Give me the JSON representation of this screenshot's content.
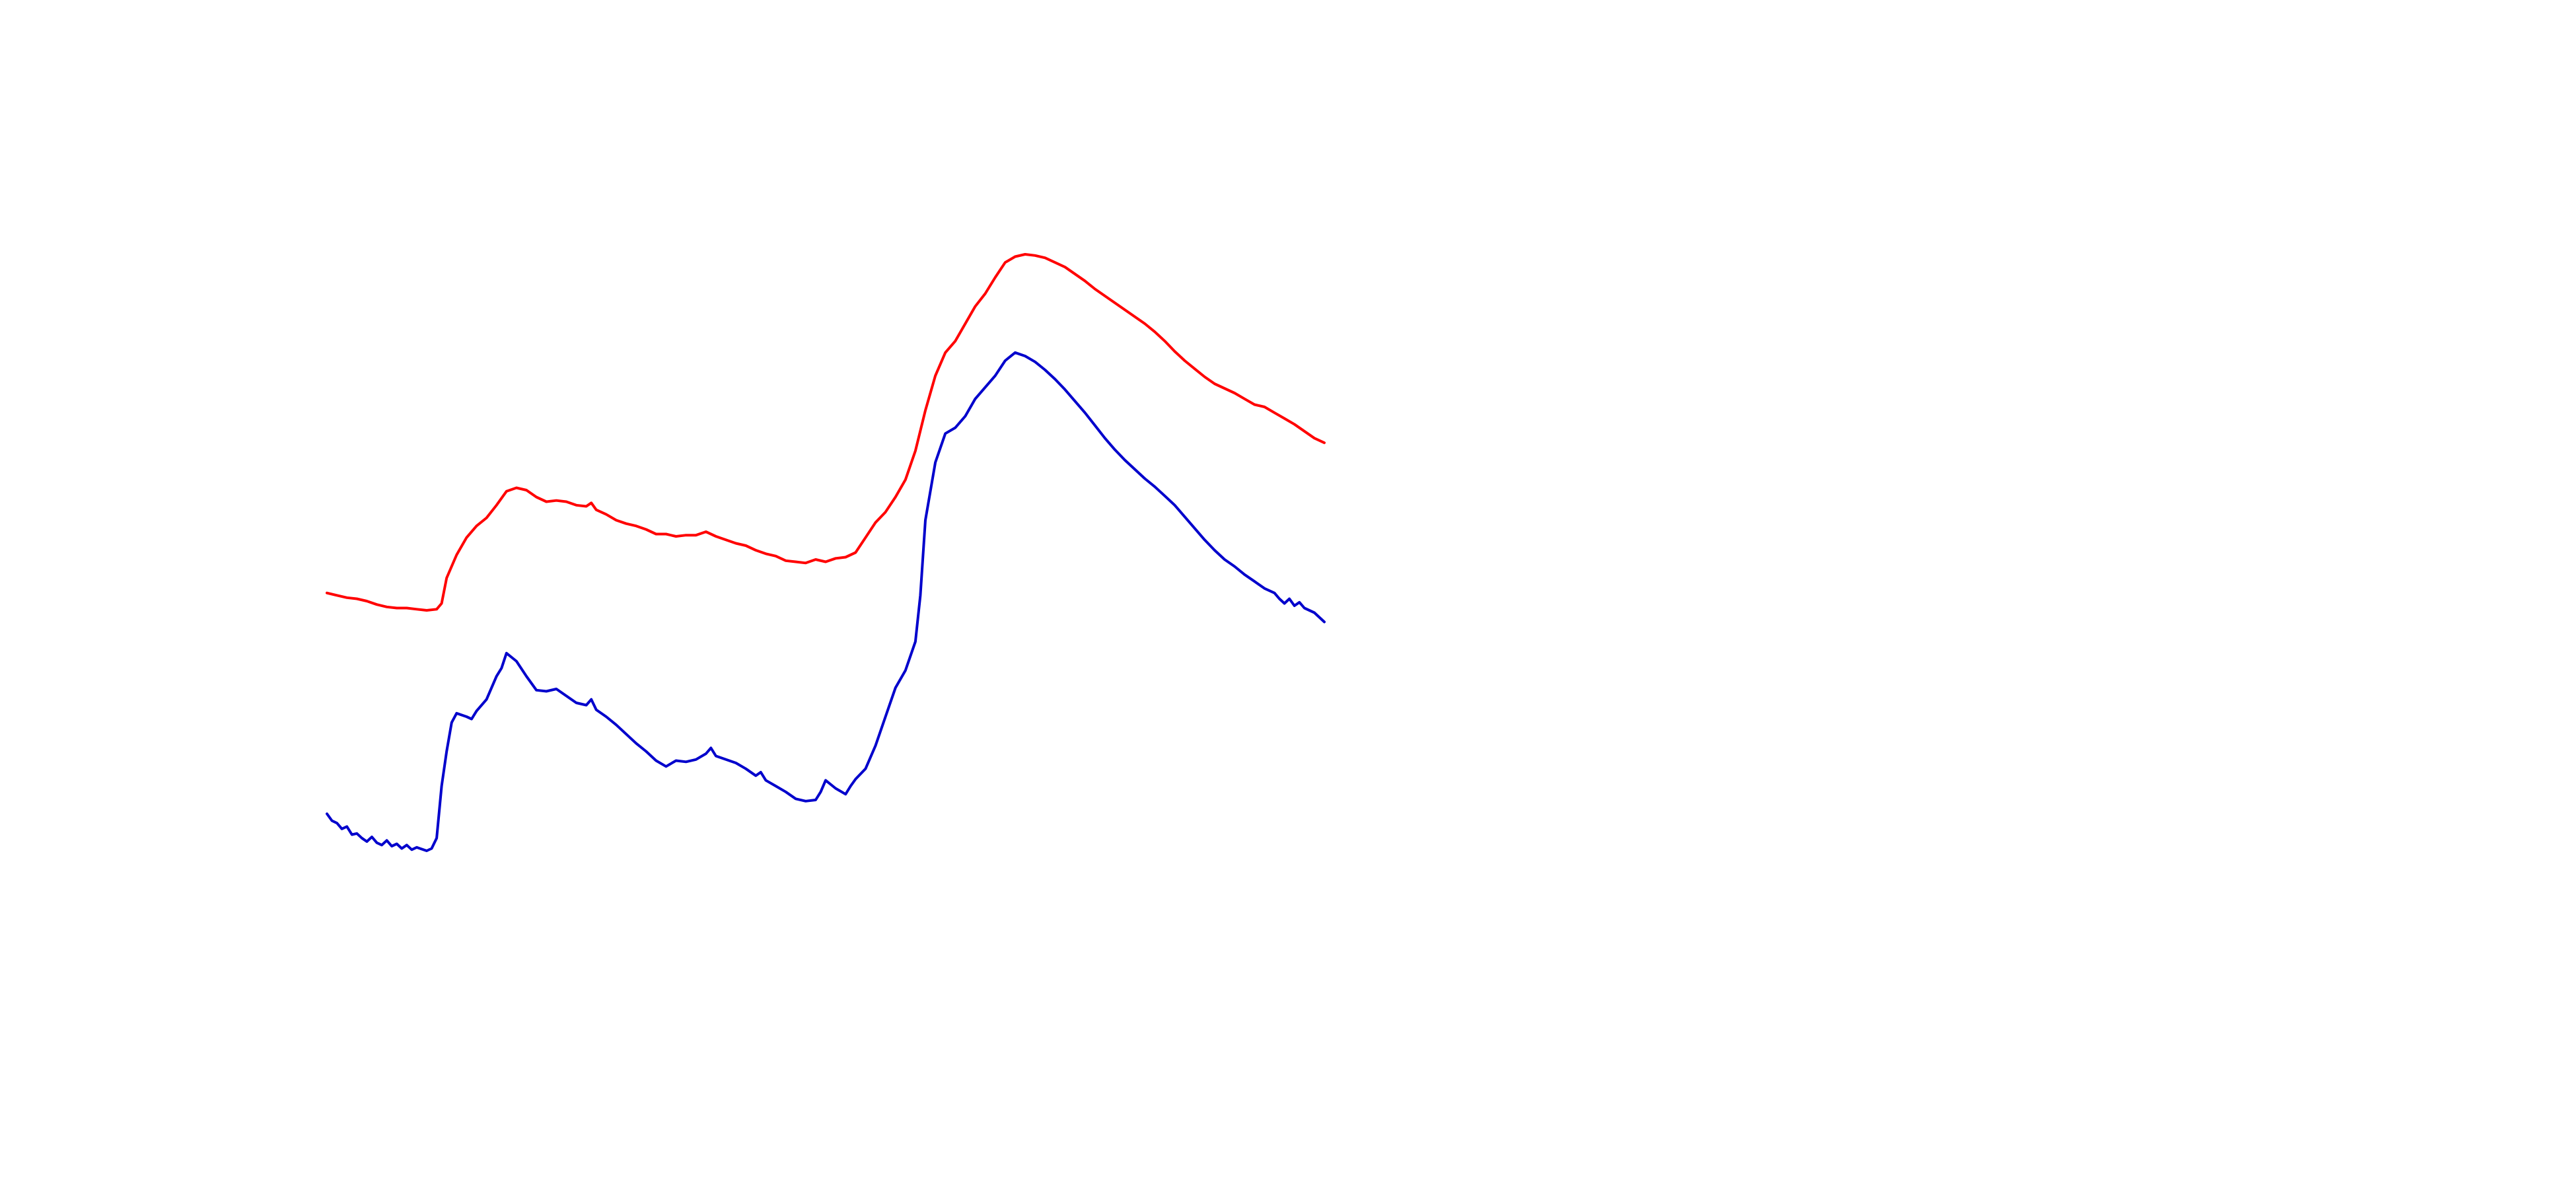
{
  "chart_data": {
    "type": "line",
    "xlim": [
      0,
      100
    ],
    "ylim": [
      0,
      100
    ],
    "grid": false,
    "legend": "none",
    "series": [
      {
        "color": "#ff0000",
        "points": [
          [
            0,
            48.7
          ],
          [
            1,
            48.5
          ],
          [
            2,
            48.3
          ],
          [
            3,
            48.2
          ],
          [
            4,
            48.0
          ],
          [
            5,
            47.7
          ],
          [
            6,
            47.5
          ],
          [
            7,
            47.4
          ],
          [
            8,
            47.4
          ],
          [
            9,
            47.3
          ],
          [
            10,
            47.2
          ],
          [
            11,
            47.3
          ],
          [
            11.5,
            47.8
          ],
          [
            12,
            50.0
          ],
          [
            13,
            52.0
          ],
          [
            14,
            53.5
          ],
          [
            15,
            54.5
          ],
          [
            16,
            55.2
          ],
          [
            17,
            56.3
          ],
          [
            18,
            57.5
          ],
          [
            19,
            57.8
          ],
          [
            20,
            57.6
          ],
          [
            21,
            57.0
          ],
          [
            22,
            56.6
          ],
          [
            23,
            56.7
          ],
          [
            24,
            56.6
          ],
          [
            25,
            56.3
          ],
          [
            26,
            56.2
          ],
          [
            26.5,
            56.5
          ],
          [
            27,
            55.9
          ],
          [
            28,
            55.5
          ],
          [
            29,
            55.0
          ],
          [
            30,
            54.7
          ],
          [
            31,
            54.5
          ],
          [
            32,
            54.2
          ],
          [
            33,
            53.8
          ],
          [
            34,
            53.8
          ],
          [
            35,
            53.6
          ],
          [
            36,
            53.7
          ],
          [
            37,
            53.7
          ],
          [
            38,
            54.0
          ],
          [
            39,
            53.6
          ],
          [
            40,
            53.3
          ],
          [
            41,
            53.0
          ],
          [
            42,
            52.8
          ],
          [
            43,
            52.4
          ],
          [
            44,
            52.1
          ],
          [
            45,
            51.9
          ],
          [
            46,
            51.5
          ],
          [
            47,
            51.4
          ],
          [
            48,
            51.3
          ],
          [
            49,
            51.6
          ],
          [
            50,
            51.4
          ],
          [
            51,
            51.7
          ],
          [
            52,
            51.8
          ],
          [
            53,
            52.2
          ],
          [
            54,
            53.5
          ],
          [
            55,
            54.8
          ],
          [
            56,
            55.7
          ],
          [
            57,
            57.0
          ],
          [
            58,
            58.5
          ],
          [
            59,
            61.0
          ],
          [
            60,
            64.5
          ],
          [
            61,
            67.5
          ],
          [
            62,
            69.5
          ],
          [
            63,
            70.5
          ],
          [
            64,
            72.0
          ],
          [
            65,
            73.5
          ],
          [
            66,
            74.6
          ],
          [
            67,
            76.0
          ],
          [
            68,
            77.3
          ],
          [
            69,
            77.8
          ],
          [
            70,
            78.0
          ],
          [
            71,
            77.9
          ],
          [
            72,
            77.7
          ],
          [
            73,
            77.3
          ],
          [
            74,
            76.9
          ],
          [
            75,
            76.3
          ],
          [
            76,
            75.7
          ],
          [
            77,
            75.0
          ],
          [
            78,
            74.4
          ],
          [
            79,
            73.8
          ],
          [
            80,
            73.2
          ],
          [
            81,
            72.6
          ],
          [
            82,
            72.0
          ],
          [
            83,
            71.3
          ],
          [
            84,
            70.5
          ],
          [
            85,
            69.6
          ],
          [
            86,
            68.8
          ],
          [
            87,
            68.1
          ],
          [
            88,
            67.4
          ],
          [
            89,
            66.8
          ],
          [
            90,
            66.4
          ],
          [
            91,
            66.0
          ],
          [
            92,
            65.5
          ],
          [
            93,
            65.0
          ],
          [
            94,
            64.8
          ],
          [
            95,
            64.3
          ],
          [
            96,
            63.8
          ],
          [
            97,
            63.3
          ],
          [
            98,
            62.7
          ],
          [
            99,
            62.1
          ],
          [
            100,
            61.7
          ]
        ]
      },
      {
        "color": "#0000cc",
        "points": [
          [
            0,
            29.6
          ],
          [
            0.5,
            29.0
          ],
          [
            1,
            28.8
          ],
          [
            1.5,
            28.3
          ],
          [
            2,
            28.5
          ],
          [
            2.5,
            27.8
          ],
          [
            3,
            27.9
          ],
          [
            3.5,
            27.5
          ],
          [
            4,
            27.2
          ],
          [
            4.5,
            27.6
          ],
          [
            5,
            27.1
          ],
          [
            5.5,
            26.9
          ],
          [
            6,
            27.3
          ],
          [
            6.5,
            26.8
          ],
          [
            7,
            27.0
          ],
          [
            7.5,
            26.6
          ],
          [
            8,
            26.9
          ],
          [
            8.5,
            26.5
          ],
          [
            9,
            26.7
          ],
          [
            10,
            26.4
          ],
          [
            10.5,
            26.6
          ],
          [
            11,
            27.5
          ],
          [
            11.5,
            32.0
          ],
          [
            12,
            35.0
          ],
          [
            12.5,
            37.5
          ],
          [
            13,
            38.3
          ],
          [
            14,
            38.0
          ],
          [
            14.5,
            37.8
          ],
          [
            15,
            38.5
          ],
          [
            16,
            39.5
          ],
          [
            17,
            41.5
          ],
          [
            17.5,
            42.2
          ],
          [
            18,
            43.5
          ],
          [
            19,
            42.8
          ],
          [
            20,
            41.5
          ],
          [
            21,
            40.3
          ],
          [
            22,
            40.2
          ],
          [
            23,
            40.4
          ],
          [
            24,
            39.8
          ],
          [
            25,
            39.2
          ],
          [
            26,
            39.0
          ],
          [
            26.5,
            39.5
          ],
          [
            27,
            38.6
          ],
          [
            28,
            38.0
          ],
          [
            29,
            37.3
          ],
          [
            30,
            36.5
          ],
          [
            31,
            35.7
          ],
          [
            32,
            35.0
          ],
          [
            33,
            34.2
          ],
          [
            34,
            33.7
          ],
          [
            35,
            34.2
          ],
          [
            36,
            34.1
          ],
          [
            37,
            34.3
          ],
          [
            38,
            34.8
          ],
          [
            38.5,
            35.3
          ],
          [
            39,
            34.6
          ],
          [
            40,
            34.3
          ],
          [
            41,
            34.0
          ],
          [
            42,
            33.5
          ],
          [
            43,
            32.9
          ],
          [
            43.5,
            33.2
          ],
          [
            44,
            32.5
          ],
          [
            45,
            32.0
          ],
          [
            46,
            31.5
          ],
          [
            47,
            30.9
          ],
          [
            48,
            30.7
          ],
          [
            49,
            30.8
          ],
          [
            49.5,
            31.5
          ],
          [
            50,
            32.5
          ],
          [
            51,
            31.8
          ],
          [
            52,
            31.3
          ],
          [
            52.5,
            32.0
          ],
          [
            53,
            32.6
          ],
          [
            54,
            33.5
          ],
          [
            55,
            35.5
          ],
          [
            56,
            38.0
          ],
          [
            57,
            40.5
          ],
          [
            58,
            42.0
          ],
          [
            59,
            44.5
          ],
          [
            59.5,
            48.5
          ],
          [
            60,
            55.0
          ],
          [
            61,
            60.0
          ],
          [
            62,
            62.5
          ],
          [
            63,
            63.0
          ],
          [
            64,
            64.0
          ],
          [
            65,
            65.5
          ],
          [
            66,
            66.5
          ],
          [
            67,
            67.5
          ],
          [
            68,
            68.8
          ],
          [
            69,
            69.5
          ],
          [
            70,
            69.2
          ],
          [
            71,
            68.7
          ],
          [
            72,
            68.0
          ],
          [
            73,
            67.2
          ],
          [
            74,
            66.3
          ],
          [
            75,
            65.3
          ],
          [
            76,
            64.3
          ],
          [
            77,
            63.2
          ],
          [
            78,
            62.1
          ],
          [
            79,
            61.1
          ],
          [
            80,
            60.2
          ],
          [
            81,
            59.4
          ],
          [
            82,
            58.6
          ],
          [
            83,
            57.9
          ],
          [
            84,
            57.1
          ],
          [
            85,
            56.3
          ],
          [
            86,
            55.3
          ],
          [
            87,
            54.3
          ],
          [
            88,
            53.3
          ],
          [
            89,
            52.4
          ],
          [
            90,
            51.6
          ],
          [
            91,
            51.0
          ],
          [
            92,
            50.3
          ],
          [
            93,
            49.7
          ],
          [
            94,
            49.1
          ],
          [
            95,
            48.7
          ],
          [
            95.5,
            48.2
          ],
          [
            96,
            47.8
          ],
          [
            96.5,
            48.2
          ],
          [
            97,
            47.6
          ],
          [
            97.5,
            47.9
          ],
          [
            98,
            47.4
          ],
          [
            99,
            47.0
          ],
          [
            100,
            46.2
          ]
        ]
      }
    ]
  }
}
